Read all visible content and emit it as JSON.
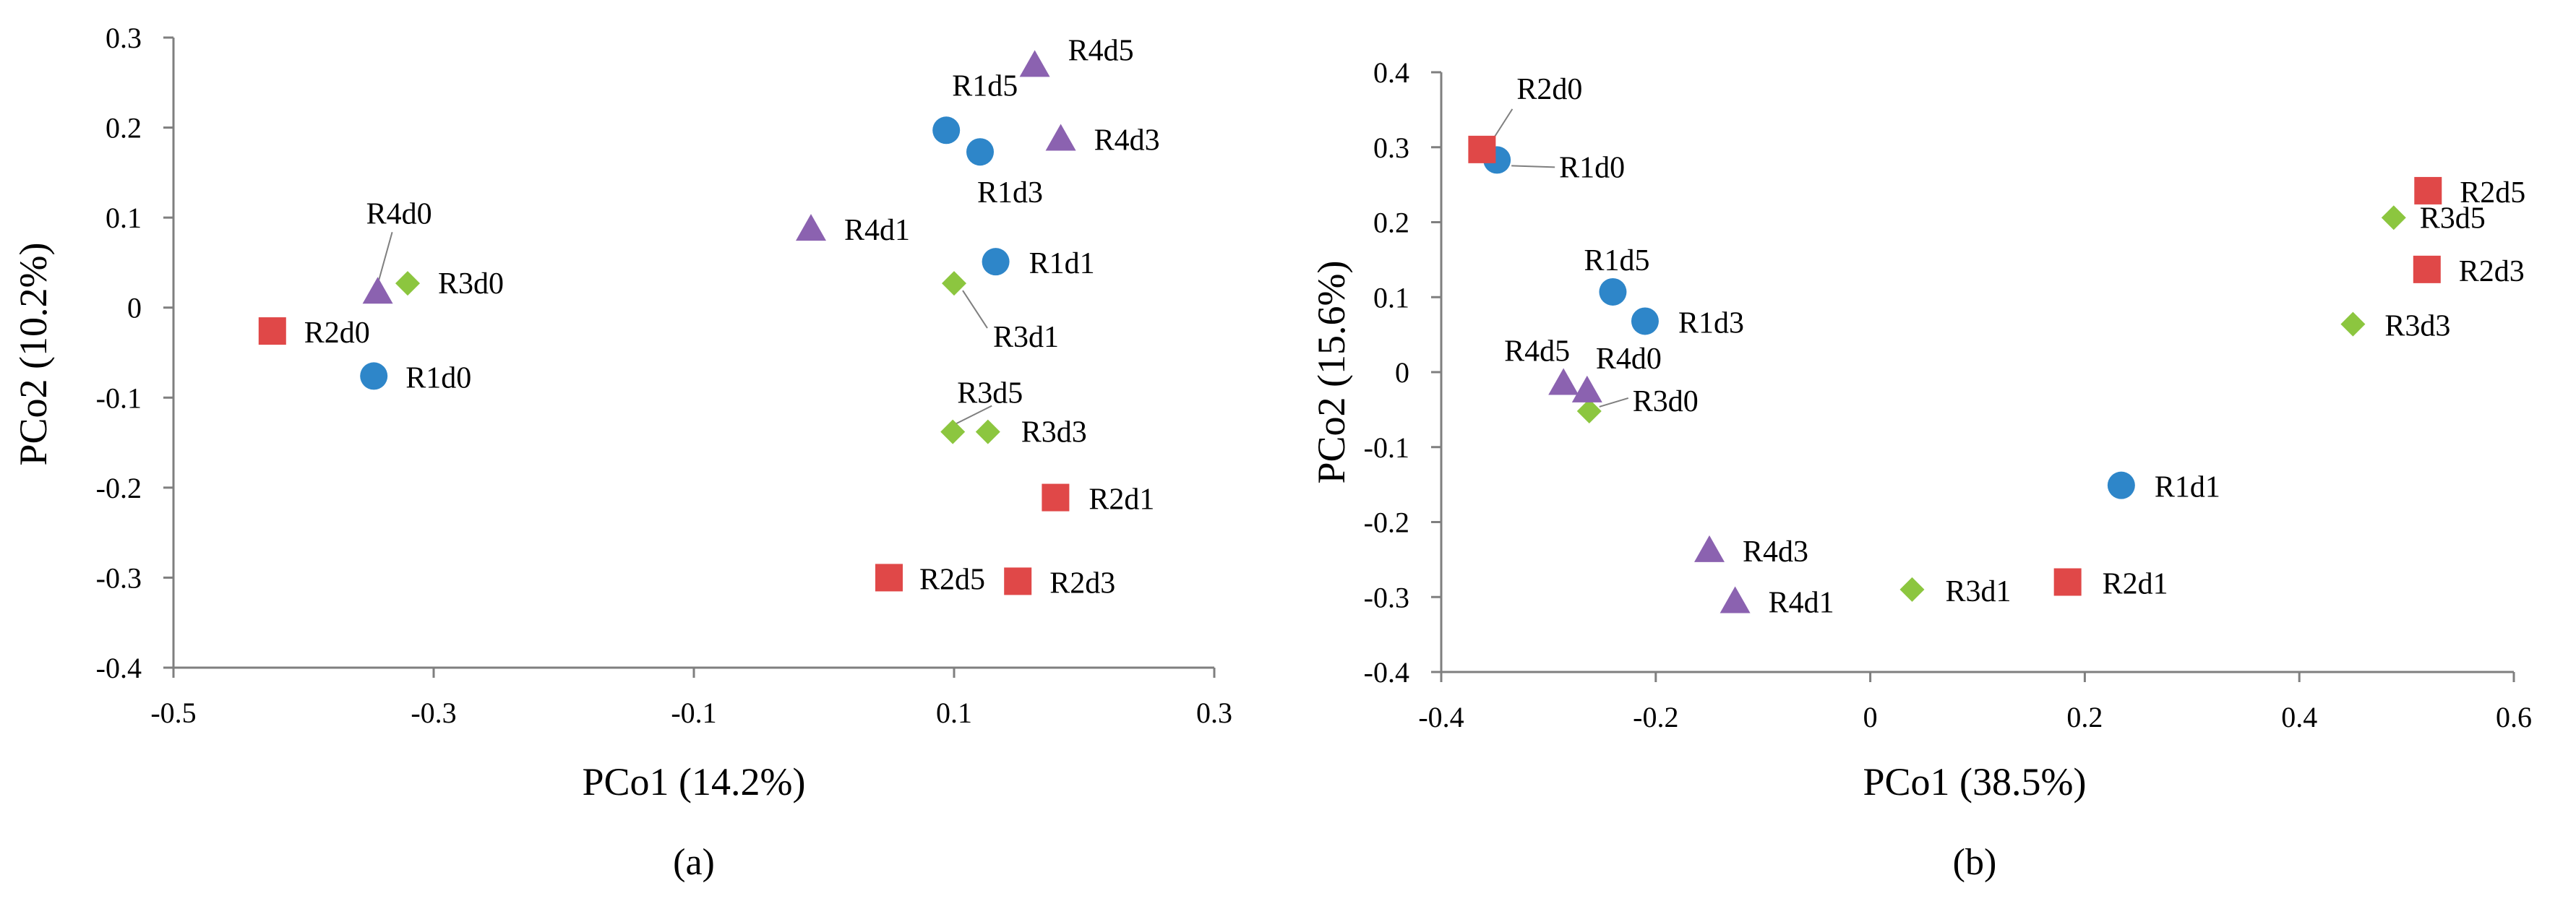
{
  "colors": {
    "R1": "#2E86C9",
    "R2": "#E04848",
    "R3": "#8CC63F",
    "R4": "#8B62B0",
    "axis": "#7f7f7f",
    "leader": "#7f7f7f"
  },
  "chart_data": [
    {
      "panel": "(a)",
      "type": "scatter",
      "xlabel": "PCo1 (14.2%)",
      "ylabel": "PCo2 (10.2%)",
      "xlim": [
        -0.5,
        0.3
      ],
      "ylim": [
        -0.4,
        0.3
      ],
      "xticks": [
        -0.5,
        -0.3,
        -0.1,
        0.1,
        0.3
      ],
      "yticks": [
        -0.4,
        -0.3,
        -0.2,
        -0.1,
        0,
        0.1,
        0.2,
        0.3
      ],
      "x_tick_labels": [
        "-0.5",
        "-0.3",
        "-0.1",
        "0.1",
        "0.3"
      ],
      "y_tick_labels": [
        "-0.4",
        "-0.3",
        "-0.2",
        "-0.1",
        "0",
        "0.1",
        "0.2",
        "0.3"
      ],
      "grid": false,
      "points": [
        {
          "label": "R1d0",
          "group": "R1",
          "shape": "circle",
          "x": -0.346,
          "y": -0.076
        },
        {
          "label": "R1d1",
          "group": "R1",
          "shape": "circle",
          "x": 0.132,
          "y": 0.051
        },
        {
          "label": "R1d3",
          "group": "R1",
          "shape": "circle",
          "x": 0.12,
          "y": 0.173
        },
        {
          "label": "R1d5",
          "group": "R1",
          "shape": "circle",
          "x": 0.094,
          "y": 0.197
        },
        {
          "label": "R2d0",
          "group": "R2",
          "shape": "square",
          "x": -0.424,
          "y": -0.026
        },
        {
          "label": "R2d1",
          "group": "R2",
          "shape": "square",
          "x": 0.178,
          "y": -0.211
        },
        {
          "label": "R2d3",
          "group": "R2",
          "shape": "square",
          "x": 0.149,
          "y": -0.304
        },
        {
          "label": "R2d5",
          "group": "R2",
          "shape": "square",
          "x": 0.05,
          "y": -0.3
        },
        {
          "label": "R3d0",
          "group": "R3",
          "shape": "diamond",
          "x": -0.32,
          "y": 0.027
        },
        {
          "label": "R3d1",
          "group": "R3",
          "shape": "diamond",
          "x": 0.1,
          "y": 0.027
        },
        {
          "label": "R3d3",
          "group": "R3",
          "shape": "diamond",
          "x": 0.126,
          "y": -0.138
        },
        {
          "label": "R3d5",
          "group": "R3",
          "shape": "diamond",
          "x": 0.099,
          "y": -0.138
        },
        {
          "label": "R4d0",
          "group": "R4",
          "shape": "triangle",
          "x": -0.343,
          "y": 0.018
        },
        {
          "label": "R4d1",
          "group": "R4",
          "shape": "triangle",
          "x": -0.01,
          "y": 0.088
        },
        {
          "label": "R4d3",
          "group": "R4",
          "shape": "triangle",
          "x": 0.182,
          "y": 0.188
        },
        {
          "label": "R4d5",
          "group": "R4",
          "shape": "triangle",
          "x": 0.162,
          "y": 0.27
        }
      ]
    },
    {
      "panel": "(b)",
      "type": "scatter",
      "xlabel": "PCo1 (38.5%)",
      "ylabel": "PCo2 (15.6%)",
      "xlim": [
        -0.4,
        0.6
      ],
      "ylim": [
        -0.4,
        0.4
      ],
      "xticks": [
        -0.4,
        -0.2,
        0,
        0.2,
        0.4,
        0.6
      ],
      "yticks": [
        -0.4,
        -0.3,
        -0.2,
        -0.1,
        0,
        0.1,
        0.2,
        0.3,
        0.4
      ],
      "x_tick_labels": [
        "-0.4",
        "-0.2",
        "0",
        "0.2",
        "0.4",
        "0.6"
      ],
      "y_tick_labels": [
        "-0.4",
        "-0.3",
        "-0.2",
        "-0.1",
        "0",
        "0.1",
        "0.2",
        "0.3",
        "0.4"
      ],
      "grid": false,
      "points": [
        {
          "label": "R1d0",
          "group": "R1",
          "shape": "circle",
          "x": -0.348,
          "y": 0.283
        },
        {
          "label": "R1d1",
          "group": "R1",
          "shape": "circle",
          "x": 0.234,
          "y": -0.151
        },
        {
          "label": "R1d3",
          "group": "R1",
          "shape": "circle",
          "x": -0.21,
          "y": 0.068
        },
        {
          "label": "R1d5",
          "group": "R1",
          "shape": "circle",
          "x": -0.24,
          "y": 0.107
        },
        {
          "label": "R2d0",
          "group": "R2",
          "shape": "square",
          "x": -0.362,
          "y": 0.297
        },
        {
          "label": "R2d1",
          "group": "R2",
          "shape": "square",
          "x": 0.184,
          "y": -0.28
        },
        {
          "label": "R2d3",
          "group": "R2",
          "shape": "square",
          "x": 0.519,
          "y": 0.137
        },
        {
          "label": "R2d5",
          "group": "R2",
          "shape": "square",
          "x": 0.52,
          "y": 0.242
        },
        {
          "label": "R3d0",
          "group": "R3",
          "shape": "diamond",
          "x": -0.262,
          "y": -0.052
        },
        {
          "label": "R3d1",
          "group": "R3",
          "shape": "diamond",
          "x": 0.039,
          "y": -0.29
        },
        {
          "label": "R3d3",
          "group": "R3",
          "shape": "diamond",
          "x": 0.45,
          "y": 0.064
        },
        {
          "label": "R3d5",
          "group": "R3",
          "shape": "diamond",
          "x": 0.488,
          "y": 0.206
        },
        {
          "label": "R4d0",
          "group": "R4",
          "shape": "triangle",
          "x": -0.264,
          "y": -0.024
        },
        {
          "label": "R4d1",
          "group": "R4",
          "shape": "triangle",
          "x": -0.126,
          "y": -0.305
        },
        {
          "label": "R4d3",
          "group": "R4",
          "shape": "triangle",
          "x": -0.15,
          "y": -0.237
        },
        {
          "label": "R4d5",
          "group": "R4",
          "shape": "triangle",
          "x": -0.286,
          "y": -0.014
        }
      ]
    }
  ]
}
